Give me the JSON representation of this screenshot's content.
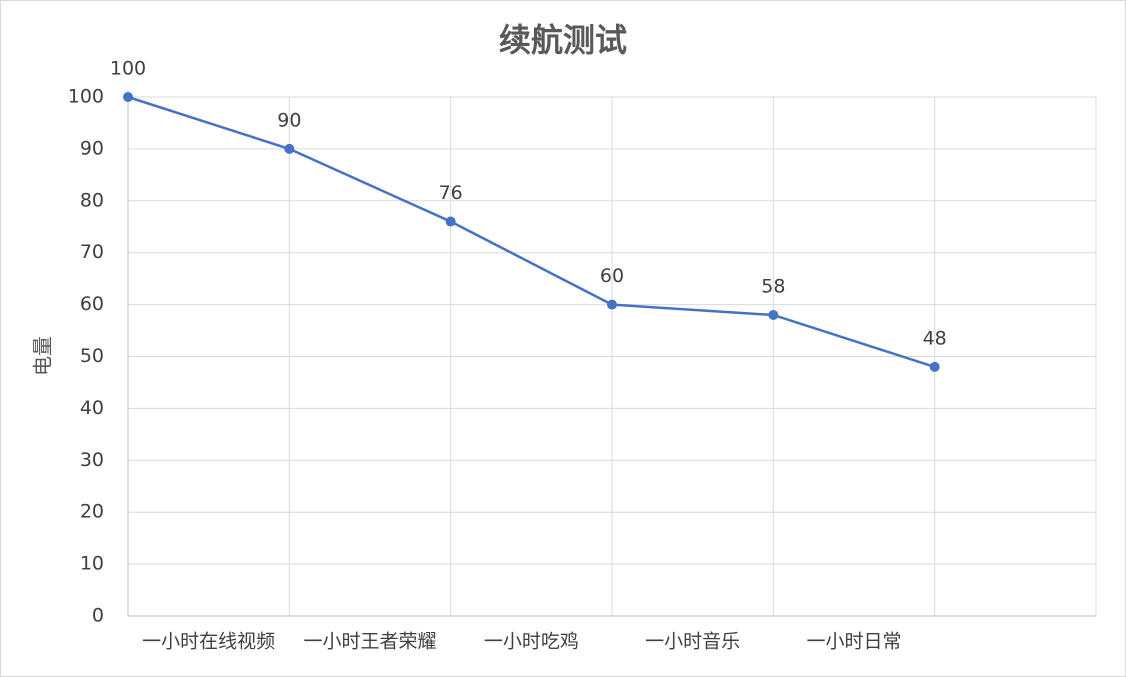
{
  "chart_data": {
    "type": "line",
    "title": "续航测试",
    "y_label": "电量",
    "categories": [
      "一小时在线视频",
      "一小时王者荣耀",
      "一小时吃鸡",
      "一小时音乐",
      "一小时日常",
      null
    ],
    "series": [
      {
        "name": "电量",
        "color": "#4472c4",
        "values": [
          100,
          90,
          76,
          60,
          58,
          48
        ]
      }
    ],
    "ylim": [
      0,
      100
    ],
    "yticks": [
      0,
      10,
      20,
      30,
      40,
      50,
      60,
      70,
      80,
      90,
      100
    ],
    "grid": true,
    "data_labels": true
  }
}
